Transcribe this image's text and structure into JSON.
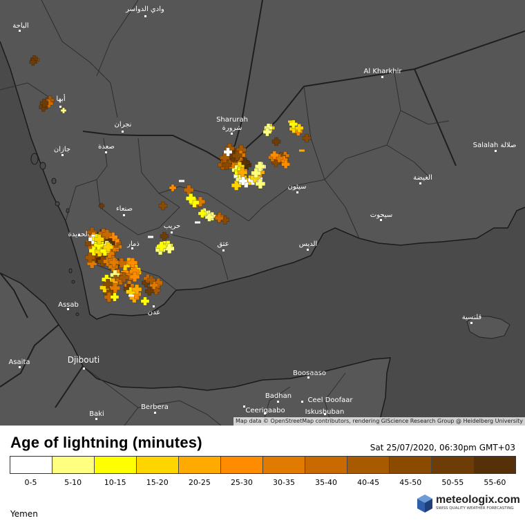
{
  "map": {
    "places": [
      {
        "name": "وادي الدواسر",
        "id": "wadi-ad-dawasir"
      },
      {
        "name": "الباحة",
        "id": "al-bahah"
      },
      {
        "name": "أبها",
        "id": "abha"
      },
      {
        "name": "نجران",
        "id": "najran"
      },
      {
        "name": "جازان",
        "id": "jazan"
      },
      {
        "name": "صعدة",
        "id": "saada"
      },
      {
        "name": "صنعاء",
        "id": "sanaa"
      },
      {
        "name": "الحديدة",
        "id": "hodeidah"
      },
      {
        "name": "ذمار",
        "id": "dhamar"
      },
      {
        "name": "حريب",
        "id": "harib"
      },
      {
        "name": "عتق",
        "id": "ataq"
      },
      {
        "name": "عدن",
        "id": "aden"
      },
      {
        "name": "Sharurah",
        "id": "sharurah-en"
      },
      {
        "name": "شرورة",
        "id": "sharurah-ar"
      },
      {
        "name": "Al Kharkhir",
        "id": "al-kharkhir"
      },
      {
        "name": "سيئون",
        "id": "seiyun"
      },
      {
        "name": "الغيضة",
        "id": "al-ghaydah"
      },
      {
        "name": "Salalah صلالة",
        "id": "salalah"
      },
      {
        "name": "سيحوت",
        "id": "sayhut"
      },
      {
        "name": "الديس",
        "id": "ad-dis"
      },
      {
        "name": "قلنسية",
        "id": "qalansiyah"
      },
      {
        "name": "Assab",
        "id": "assab"
      },
      {
        "name": "Djibouti",
        "id": "djibouti"
      },
      {
        "name": "Asaita",
        "id": "asaita"
      },
      {
        "name": "Boosaaso",
        "id": "boosaaso"
      },
      {
        "name": "Badhan",
        "id": "badhan"
      },
      {
        "name": "Ceel Doofaar",
        "id": "ceel-doofaar"
      },
      {
        "name": "Ceerigaabo",
        "id": "ceerigaabo"
      },
      {
        "name": "Iskushuban",
        "id": "iskushuban"
      },
      {
        "name": "Berbera",
        "id": "berbera"
      },
      {
        "name": "Baki",
        "id": "baki"
      }
    ],
    "attribution": "Map data © OpenStreetMap contributors, rendering GIScience Research Group @ Heidelberg University"
  },
  "legend": {
    "title": "Age of lightning (minutes)",
    "timestamp": "Sat 25/07/2020, 06:30pm GMT+03",
    "bins": [
      {
        "label": "0-5",
        "color": "#ffffff"
      },
      {
        "label": "5-10",
        "color": "#ffff80"
      },
      {
        "label": "10-15",
        "color": "#ffff00"
      },
      {
        "label": "15-20",
        "color": "#ffd500"
      },
      {
        "label": "20-25",
        "color": "#ffaa00"
      },
      {
        "label": "25-30",
        "color": "#ff8c00"
      },
      {
        "label": "30-35",
        "color": "#e07b00"
      },
      {
        "label": "35-40",
        "color": "#c86a00"
      },
      {
        "label": "40-45",
        "color": "#a85a00"
      },
      {
        "label": "45-50",
        "color": "#8a4a00"
      },
      {
        "label": "50-55",
        "color": "#6e3c06"
      },
      {
        "label": "55-60",
        "color": "#553008"
      }
    ]
  },
  "region": "Yemen",
  "brand": {
    "name": "meteologix.com",
    "tagline": "SWISS QUALITY WEATHER FORECASTING"
  }
}
